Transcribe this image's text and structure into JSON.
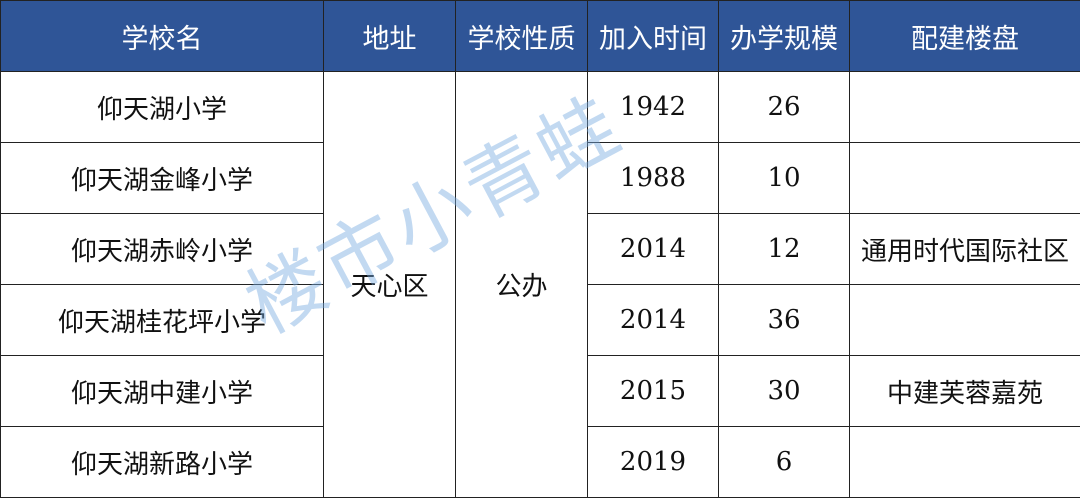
{
  "headers": [
    "学校名",
    "地址",
    "学校性质",
    "加入时间",
    "办学规模",
    "配建楼盘"
  ],
  "district": "天心区",
  "nature": "公办",
  "rows": [
    {
      "name": "仰天湖小学",
      "year": "1942",
      "scale": "26",
      "estate": ""
    },
    {
      "name": "仰天湖金峰小学",
      "year": "1988",
      "scale": "10",
      "estate": ""
    },
    {
      "name": "仰天湖赤岭小学",
      "year": "2014",
      "scale": "12",
      "estate": "通用时代国际社区"
    },
    {
      "name": "仰天湖桂花坪小学",
      "year": "2014",
      "scale": "36",
      "estate": ""
    },
    {
      "name": "仰天湖中建小学",
      "year": "2015",
      "scale": "30",
      "estate": "中建芙蓉嘉苑"
    },
    {
      "name": "仰天湖新路小学",
      "year": "2019",
      "scale": "6",
      "estate": ""
    }
  ],
  "watermark": "楼市小青蛙",
  "colors": {
    "header_bg": "#2f5597",
    "header_text": "#ffffff"
  }
}
